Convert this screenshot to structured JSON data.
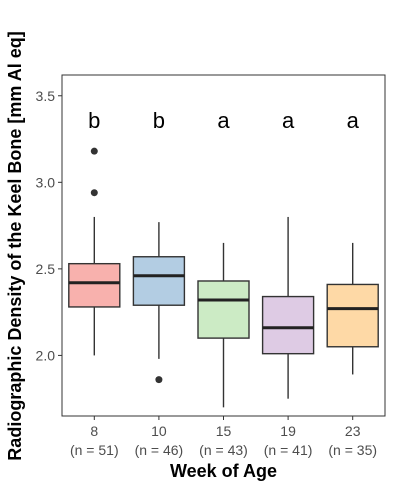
{
  "chart_data": {
    "type": "box",
    "title": "",
    "xlabel": "Week of Age",
    "ylabel": "Radiographic Density of the Keel Bone [mm Al eq]",
    "ylim": [
      1.65,
      3.62
    ],
    "yticks": [
      2.0,
      2.5,
      3.0,
      3.5
    ],
    "ytick_labels": [
      "2.0",
      "2.5",
      "3.0",
      "3.5"
    ],
    "grid": false,
    "legend": "none",
    "groups": [
      {
        "category": "8",
        "n_label": "(n = 51)",
        "letter": "b",
        "color": "#f8b1ad",
        "whisker_low": 2.0,
        "q1": 2.28,
        "median": 2.42,
        "q3": 2.53,
        "whisker_high": 2.8,
        "outliers": [
          2.94,
          3.18
        ]
      },
      {
        "category": "10",
        "n_label": "(n = 46)",
        "letter": "b",
        "color": "#b3cde3",
        "whisker_low": 1.98,
        "q1": 2.29,
        "median": 2.46,
        "q3": 2.57,
        "whisker_high": 2.77,
        "outliers": [
          1.86
        ]
      },
      {
        "category": "15",
        "n_label": "(n = 43)",
        "letter": "a",
        "color": "#ccebc5",
        "whisker_low": 1.7,
        "q1": 2.1,
        "median": 2.32,
        "q3": 2.43,
        "whisker_high": 2.65,
        "outliers": []
      },
      {
        "category": "19",
        "n_label": "(n = 41)",
        "letter": "a",
        "color": "#decbe4",
        "whisker_low": 1.75,
        "q1": 2.01,
        "median": 2.16,
        "q3": 2.34,
        "whisker_high": 2.8,
        "outliers": []
      },
      {
        "category": "23",
        "n_label": "(n = 35)",
        "letter": "a",
        "color": "#fed9a6",
        "whisker_low": 1.89,
        "q1": 2.05,
        "median": 2.27,
        "q3": 2.41,
        "whisker_high": 2.65,
        "outliers": []
      }
    ]
  }
}
